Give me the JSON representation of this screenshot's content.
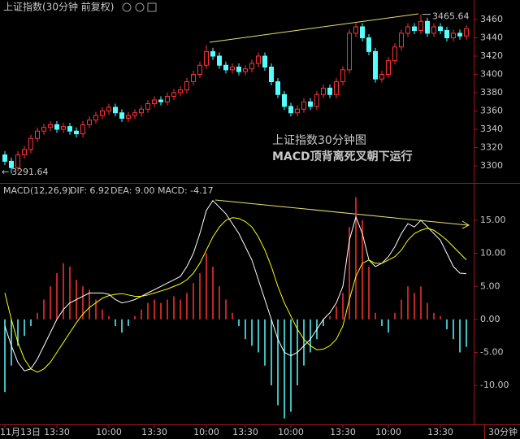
{
  "chart_data": [
    {
      "type": "candlestick",
      "title": "上证指数(30分钟 前复权)",
      "open": [
        3312,
        3305,
        3298,
        3312,
        3318,
        3330,
        3338,
        3342,
        3345,
        3340,
        3343,
        3338,
        3335,
        3345,
        3350,
        3355,
        3360,
        3364,
        3358,
        3352,
        3355,
        3358,
        3362,
        3368,
        3372,
        3370,
        3376,
        3380,
        3383,
        3392,
        3400,
        3410,
        3425,
        3420,
        3410,
        3405,
        3408,
        3403,
        3406,
        3412,
        3420,
        3408,
        3392,
        3378,
        3365,
        3358,
        3362,
        3370,
        3365,
        3378,
        3385,
        3378,
        3392,
        3405,
        3445,
        3452,
        3440,
        3425,
        3395,
        3400,
        3415,
        3430,
        3445,
        3452,
        3448,
        3458,
        3445,
        3452,
        3448,
        3440,
        3445,
        3442
      ],
      "high": [
        3316,
        3309,
        3316,
        3322,
        3334,
        3342,
        3346,
        3349,
        3349,
        3347,
        3347,
        3342,
        3349,
        3354,
        3359,
        3364,
        3368,
        3368,
        3362,
        3359,
        3362,
        3366,
        3372,
        3376,
        3376,
        3380,
        3384,
        3387,
        3396,
        3404,
        3414,
        3432,
        3429,
        3424,
        3414,
        3412,
        3412,
        3410,
        3416,
        3424,
        3424,
        3412,
        3396,
        3382,
        3369,
        3366,
        3374,
        3374,
        3382,
        3389,
        3389,
        3396,
        3409,
        3449,
        3456,
        3456,
        3444,
        3429,
        3404,
        3419,
        3434,
        3449,
        3456,
        3456,
        3465.64,
        3462,
        3456,
        3456,
        3452,
        3449,
        3449,
        3454
      ],
      "low": [
        3301,
        3291.64,
        3294,
        3308,
        3314,
        3326,
        3334,
        3338,
        3336,
        3336,
        3334,
        3331,
        3331,
        3341,
        3346,
        3351,
        3356,
        3354,
        3348,
        3348,
        3351,
        3354,
        3358,
        3364,
        3366,
        3366,
        3372,
        3376,
        3379,
        3388,
        3396,
        3406,
        3416,
        3406,
        3401,
        3401,
        3399,
        3399,
        3402,
        3408,
        3404,
        3388,
        3374,
        3361,
        3354,
        3354,
        3358,
        3361,
        3361,
        3374,
        3374,
        3374,
        3388,
        3401,
        3441,
        3436,
        3421,
        3391,
        3391,
        3396,
        3411,
        3426,
        3441,
        3444,
        3444,
        3441,
        3441,
        3444,
        3436,
        3436,
        3438,
        3438
      ],
      "close": [
        3305,
        3298,
        3312,
        3318,
        3330,
        3338,
        3342,
        3345,
        3340,
        3343,
        3338,
        3335,
        3345,
        3350,
        3355,
        3360,
        3364,
        3358,
        3352,
        3355,
        3358,
        3362,
        3368,
        3372,
        3370,
        3376,
        3380,
        3383,
        3392,
        3400,
        3410,
        3425,
        3420,
        3410,
        3405,
        3408,
        3403,
        3406,
        3412,
        3420,
        3408,
        3392,
        3378,
        3365,
        3358,
        3362,
        3370,
        3365,
        3378,
        3385,
        3378,
        3392,
        3405,
        3445,
        3452,
        3440,
        3425,
        3395,
        3400,
        3415,
        3430,
        3445,
        3452,
        3448,
        3458,
        3445,
        3452,
        3448,
        3440,
        3445,
        3442,
        3450
      ],
      "up_color": "#ff3232",
      "down_color": "#54ffff",
      "ylim": [
        3284,
        3468
      ],
      "yticks": [
        3300,
        3320,
        3340,
        3360,
        3380,
        3400,
        3420,
        3440,
        3460
      ],
      "high_label": "3465.64",
      "low_label": "3291.64",
      "annotations": [
        "上证指数30分钟图",
        "MACD顶背离死叉朝下运行"
      ]
    },
    {
      "type": "macd",
      "indicator": "MACD(12,26,9)",
      "categories": [
        "11月13日",
        null,
        null,
        null,
        null,
        null,
        null,
        null,
        "13:30",
        null,
        null,
        null,
        null,
        null,
        null,
        null,
        "10:00",
        null,
        null,
        null,
        null,
        null,
        null,
        "13:30",
        null,
        null,
        null,
        null,
        null,
        null,
        null,
        "10:00",
        null,
        null,
        null,
        null,
        null,
        "13:30",
        null,
        null,
        null,
        null,
        null,
        null,
        "10:00",
        null,
        null,
        null,
        null,
        null,
        null,
        null,
        "13:30",
        null,
        null,
        null,
        null,
        null,
        null,
        "10:00",
        null,
        null,
        null,
        null,
        null,
        null,
        null,
        "13:30",
        null,
        null,
        null,
        null
      ],
      "series": [
        {
          "name": "MACD: -4.17",
          "kind": "histogram",
          "color": "#ff40ff",
          "values": [
            -11,
            -7,
            -4,
            -2.5,
            -1,
            1,
            3,
            5,
            7,
            8.5,
            8,
            6,
            5,
            4.5,
            3,
            1.5,
            0.5,
            -1,
            -2,
            -1,
            0.5,
            1.5,
            2.5,
            3,
            2.5,
            3,
            3.5,
            3,
            4,
            5.5,
            7,
            10,
            8,
            5,
            3,
            1,
            -1,
            -3,
            -4,
            -5,
            -7,
            -10,
            -13,
            -15,
            -14,
            -10,
            -7,
            -5,
            -3,
            -1,
            0.5,
            2,
            4,
            14,
            18.5,
            15,
            8,
            1,
            -1,
            -2,
            1,
            3,
            5,
            4,
            5,
            2.5,
            1,
            0.5,
            -1.5,
            -3,
            -5,
            -4.17
          ]
        },
        {
          "name": "DIF: 6.92",
          "kind": "line",
          "color": "#ffffff",
          "values": [
            -1,
            -4,
            -6.5,
            -7.8,
            -7.5,
            -6,
            -4,
            -2,
            0,
            1.5,
            2.5,
            3,
            3.5,
            4,
            4,
            4,
            3.8,
            3,
            2.5,
            2.7,
            3,
            3.5,
            4,
            4.5,
            5,
            5.5,
            6,
            6.5,
            8,
            10,
            13,
            16.5,
            18,
            17,
            16,
            14.5,
            13,
            11,
            9,
            6,
            3,
            0,
            -3,
            -5,
            -5.5,
            -5,
            -4,
            -3,
            -1.5,
            0,
            1,
            2.5,
            5,
            12,
            15.5,
            13,
            9,
            8,
            8.5,
            9.5,
            11,
            13,
            14.5,
            14,
            15,
            14,
            13,
            12,
            10,
            8,
            7,
            6.92
          ]
        },
        {
          "name": "DEA: 9.00",
          "kind": "line",
          "color": "#ffff00",
          "values": [
            4,
            0,
            -3.5,
            -6,
            -7.5,
            -8,
            -7.5,
            -6.5,
            -5,
            -3.5,
            -2,
            -0.5,
            0.8,
            1.8,
            2.5,
            3.2,
            3.6,
            3.8,
            3.9,
            3.7,
            3.5,
            3.5,
            3.7,
            4,
            4.3,
            4.6,
            5,
            5.4,
            6,
            7,
            8.5,
            10.5,
            12.5,
            14,
            15,
            15.4,
            15.3,
            14.8,
            14,
            12.5,
            10.5,
            8,
            5,
            2.5,
            0.5,
            -1.5,
            -3,
            -4,
            -4.6,
            -4.5,
            -4,
            -3,
            -1,
            3,
            6.5,
            8.5,
            9,
            8.5,
            8.5,
            9,
            9.5,
            10.5,
            12,
            13,
            13.5,
            13.8,
            13.5,
            12.8,
            12,
            11,
            10,
            9.0
          ]
        }
      ],
      "up_color": "#ff3232",
      "down_color": "#54ffff",
      "ylim": [
        -15.9,
        20.3
      ],
      "yticks": [
        {
          "value": -10,
          "label": "-10.00"
        },
        {
          "value": -5,
          "label": "-5.00"
        },
        {
          "value": 0,
          "label": "0.00"
        },
        {
          "value": 5,
          "label": "5.00"
        },
        {
          "value": 10,
          "label": "10.00"
        },
        {
          "value": 15,
          "label": "15.00"
        }
      ],
      "period": "30分钟"
    }
  ]
}
